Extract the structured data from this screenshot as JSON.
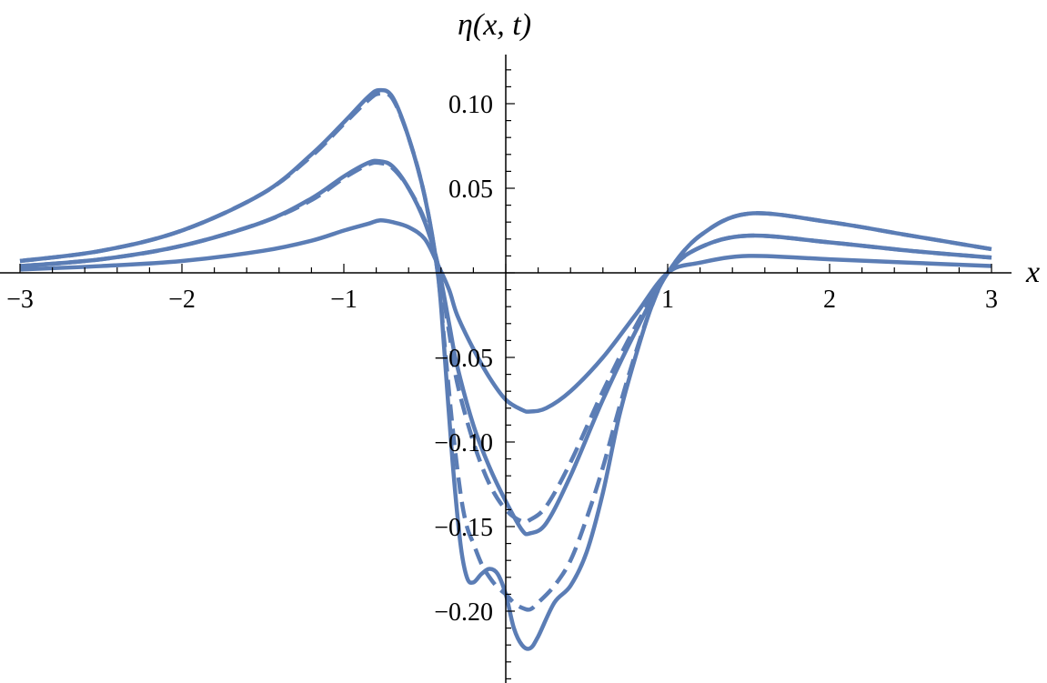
{
  "chart_data": {
    "type": "line",
    "title": "",
    "xlabel": "x",
    "ylabel": "η(x, t)",
    "xlim": [
      -3,
      3.05
    ],
    "ylim": [
      -0.24,
      0.125
    ],
    "x_ticks": [
      {
        "value": -3,
        "label": "−3"
      },
      {
        "value": -2,
        "label": "−2"
      },
      {
        "value": -1,
        "label": "−1"
      },
      {
        "value": 1,
        "label": "1"
      },
      {
        "value": 2,
        "label": "2"
      },
      {
        "value": 3,
        "label": "3"
      }
    ],
    "y_ticks": [
      {
        "value": 0.1,
        "label": "0.10"
      },
      {
        "value": 0.05,
        "label": "0.05"
      },
      {
        "value": -0.05,
        "label": "−0.05"
      },
      {
        "value": -0.1,
        "label": "−0.10"
      },
      {
        "value": -0.15,
        "label": "−0.15"
      },
      {
        "value": -0.2,
        "label": "−0.20"
      }
    ],
    "grid": false,
    "line_color": "#5b7db5",
    "series": [
      {
        "style": "solid",
        "x": [
          -3,
          -2.5,
          -2,
          -1.5,
          -1.2,
          -1,
          -0.85,
          -0.78,
          -0.7,
          -0.6,
          -0.5,
          -0.42,
          -0.35,
          -0.3,
          -0.2,
          -0.1,
          0,
          0.1,
          0.15,
          0.25,
          0.4,
          0.6,
          0.8,
          1,
          1.2,
          1.5,
          2,
          2.5,
          3
        ],
        "y": [
          0.002,
          0.004,
          0.007,
          0.013,
          0.019,
          0.025,
          0.029,
          0.031,
          0.03,
          0.027,
          0.02,
          0.005,
          -0.01,
          -0.025,
          -0.045,
          -0.062,
          -0.075,
          -0.081,
          -0.082,
          -0.08,
          -0.07,
          -0.05,
          -0.025,
          0,
          0.006,
          0.01,
          0.008,
          0.006,
          0.004
        ]
      },
      {
        "style": "solid",
        "x": [
          -3,
          -2.5,
          -2,
          -1.5,
          -1.2,
          -1,
          -0.85,
          -0.78,
          -0.7,
          -0.6,
          -0.5,
          -0.42,
          -0.35,
          -0.3,
          -0.2,
          -0.1,
          0,
          0.1,
          0.15,
          0.25,
          0.4,
          0.6,
          0.8,
          1,
          1.2,
          1.5,
          2,
          2.5,
          3
        ],
        "y": [
          0.004,
          0.008,
          0.016,
          0.03,
          0.044,
          0.057,
          0.065,
          0.066,
          0.063,
          0.05,
          0.03,
          0.005,
          -0.03,
          -0.055,
          -0.09,
          -0.115,
          -0.135,
          -0.152,
          -0.154,
          -0.148,
          -0.12,
          -0.075,
          -0.035,
          0,
          0.015,
          0.022,
          0.018,
          0.013,
          0.009
        ]
      },
      {
        "style": "dashed",
        "x": [
          -3,
          -2.5,
          -2,
          -1.5,
          -1.2,
          -1,
          -0.85,
          -0.78,
          -0.7,
          -0.6,
          -0.5,
          -0.42,
          -0.35,
          -0.3,
          -0.2,
          -0.1,
          0,
          0.1,
          0.15,
          0.25,
          0.4,
          0.6,
          0.8,
          1,
          1.2,
          1.5,
          2,
          2.5,
          3
        ],
        "y": [
          0.004,
          0.008,
          0.016,
          0.03,
          0.043,
          0.056,
          0.064,
          0.065,
          0.062,
          0.05,
          0.031,
          0.005,
          -0.035,
          -0.065,
          -0.1,
          -0.125,
          -0.14,
          -0.147,
          -0.146,
          -0.138,
          -0.112,
          -0.07,
          -0.032,
          0,
          0.015,
          0.022,
          0.018,
          0.013,
          0.009
        ]
      },
      {
        "style": "solid",
        "x": [
          -3,
          -2.5,
          -2,
          -1.5,
          -1.2,
          -1,
          -0.85,
          -0.78,
          -0.7,
          -0.6,
          -0.5,
          -0.42,
          -0.38,
          -0.33,
          -0.28,
          -0.24,
          -0.2,
          -0.15,
          -0.1,
          -0.05,
          0,
          0.05,
          0.1,
          0.15,
          0.2,
          0.3,
          0.4,
          0.5,
          0.6,
          0.7,
          0.8,
          0.9,
          1,
          1.2,
          1.5,
          2,
          2.5,
          3
        ],
        "y": [
          0.007,
          0.013,
          0.025,
          0.047,
          0.07,
          0.089,
          0.104,
          0.108,
          0.104,
          0.08,
          0.045,
          0,
          -0.045,
          -0.11,
          -0.16,
          -0.18,
          -0.183,
          -0.178,
          -0.175,
          -0.178,
          -0.19,
          -0.21,
          -0.22,
          -0.222,
          -0.215,
          -0.195,
          -0.185,
          -0.165,
          -0.13,
          -0.085,
          -0.05,
          -0.02,
          0,
          0.022,
          0.035,
          0.03,
          0.022,
          0.014
        ]
      },
      {
        "style": "dashed",
        "x": [
          -3,
          -2.5,
          -2,
          -1.5,
          -1.2,
          -1,
          -0.85,
          -0.78,
          -0.7,
          -0.6,
          -0.5,
          -0.42,
          -0.38,
          -0.33,
          -0.28,
          -0.24,
          -0.2,
          -0.15,
          -0.1,
          -0.05,
          0,
          0.05,
          0.1,
          0.15,
          0.2,
          0.3,
          0.4,
          0.5,
          0.6,
          0.7,
          0.8,
          0.9,
          1,
          1.2,
          1.5,
          2,
          2.5,
          3
        ],
        "y": [
          0.007,
          0.013,
          0.025,
          0.047,
          0.069,
          0.088,
          0.102,
          0.106,
          0.103,
          0.08,
          0.045,
          0,
          -0.04,
          -0.09,
          -0.13,
          -0.15,
          -0.16,
          -0.172,
          -0.18,
          -0.186,
          -0.19,
          -0.195,
          -0.198,
          -0.199,
          -0.195,
          -0.185,
          -0.17,
          -0.145,
          -0.115,
          -0.08,
          -0.048,
          -0.02,
          0,
          0.022,
          0.035,
          0.03,
          0.022,
          0.014
        ]
      }
    ]
  }
}
